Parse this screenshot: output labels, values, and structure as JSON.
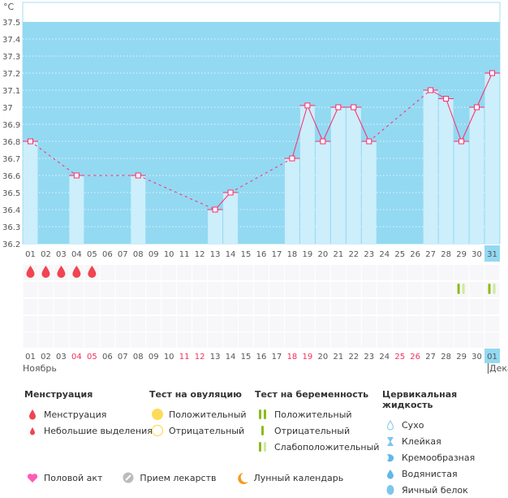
{
  "chart_data": {
    "type": "bar",
    "unit": "°C",
    "ylim": [
      36.2,
      37.5
    ],
    "yticks": [
      "36.2",
      "36.3",
      "36.4",
      "36.5",
      "36.6",
      "36.7",
      "36.8",
      "36.9",
      "37",
      "37.1",
      "37.2",
      "37.3",
      "37.4",
      "37.5"
    ],
    "days": [
      "01",
      "02",
      "03",
      "04",
      "05",
      "06",
      "07",
      "08",
      "09",
      "10",
      "11",
      "12",
      "13",
      "14",
      "15",
      "16",
      "17",
      "18",
      "19",
      "20",
      "21",
      "22",
      "23",
      "24",
      "25",
      "26",
      "27",
      "28",
      "29",
      "30",
      "31"
    ],
    "highlighted_day": "31",
    "temperatures": {
      "01": 36.8,
      "04": 36.6,
      "08": 36.6,
      "13": 36.4,
      "14": 36.5,
      "18": 36.7,
      "19": 37.01,
      "20": 36.8,
      "21": 37.0,
      "22": 37.0,
      "23": 36.8,
      "27": 37.1,
      "28": 37.05,
      "29": 36.8,
      "30": 37.0,
      "31": 37.2
    },
    "colors": {
      "background": "#93d9f2",
      "bar": "#cdeefb",
      "line": "#ff2a6a",
      "top_band": "#ffffff"
    }
  },
  "tracker": {
    "menstruation_days": [
      "01",
      "02",
      "03",
      "04",
      "05"
    ],
    "pregnancy_test_days": [
      "29",
      "31"
    ],
    "bottom_days": [
      "01",
      "02",
      "03",
      "04",
      "05",
      "06",
      "07",
      "08",
      "09",
      "10",
      "11",
      "12",
      "13",
      "14",
      "15",
      "16",
      "17",
      "18",
      "19",
      "20",
      "21",
      "22",
      "23",
      "24",
      "25",
      "26",
      "27",
      "28",
      "29",
      "30",
      "01"
    ],
    "weekend_days": [
      "04",
      "05",
      "11",
      "12",
      "18",
      "19",
      "25",
      "26"
    ],
    "month_current": "Ноябрь",
    "month_next": "Дека"
  },
  "legend": {
    "menstruation": {
      "title": "Менструация",
      "items": [
        "Менструация",
        "Небольшие выделения"
      ]
    },
    "ovulation": {
      "title": "Тест на овуляцию",
      "items": [
        "Положительный",
        "Отрицательный"
      ]
    },
    "pregnancy": {
      "title": "Тест на беременность",
      "items": [
        "Положительный",
        "Отрицательный",
        "Слабоположительный"
      ]
    },
    "cervical": {
      "title": "Цервикальная жидкость",
      "items": [
        "Сухо",
        "Клейкая",
        "Кремообразная",
        "Водянистая",
        "Яичный белок"
      ]
    },
    "other": [
      "Половой акт",
      "Прием лекарств",
      "Лунный календарь"
    ]
  }
}
